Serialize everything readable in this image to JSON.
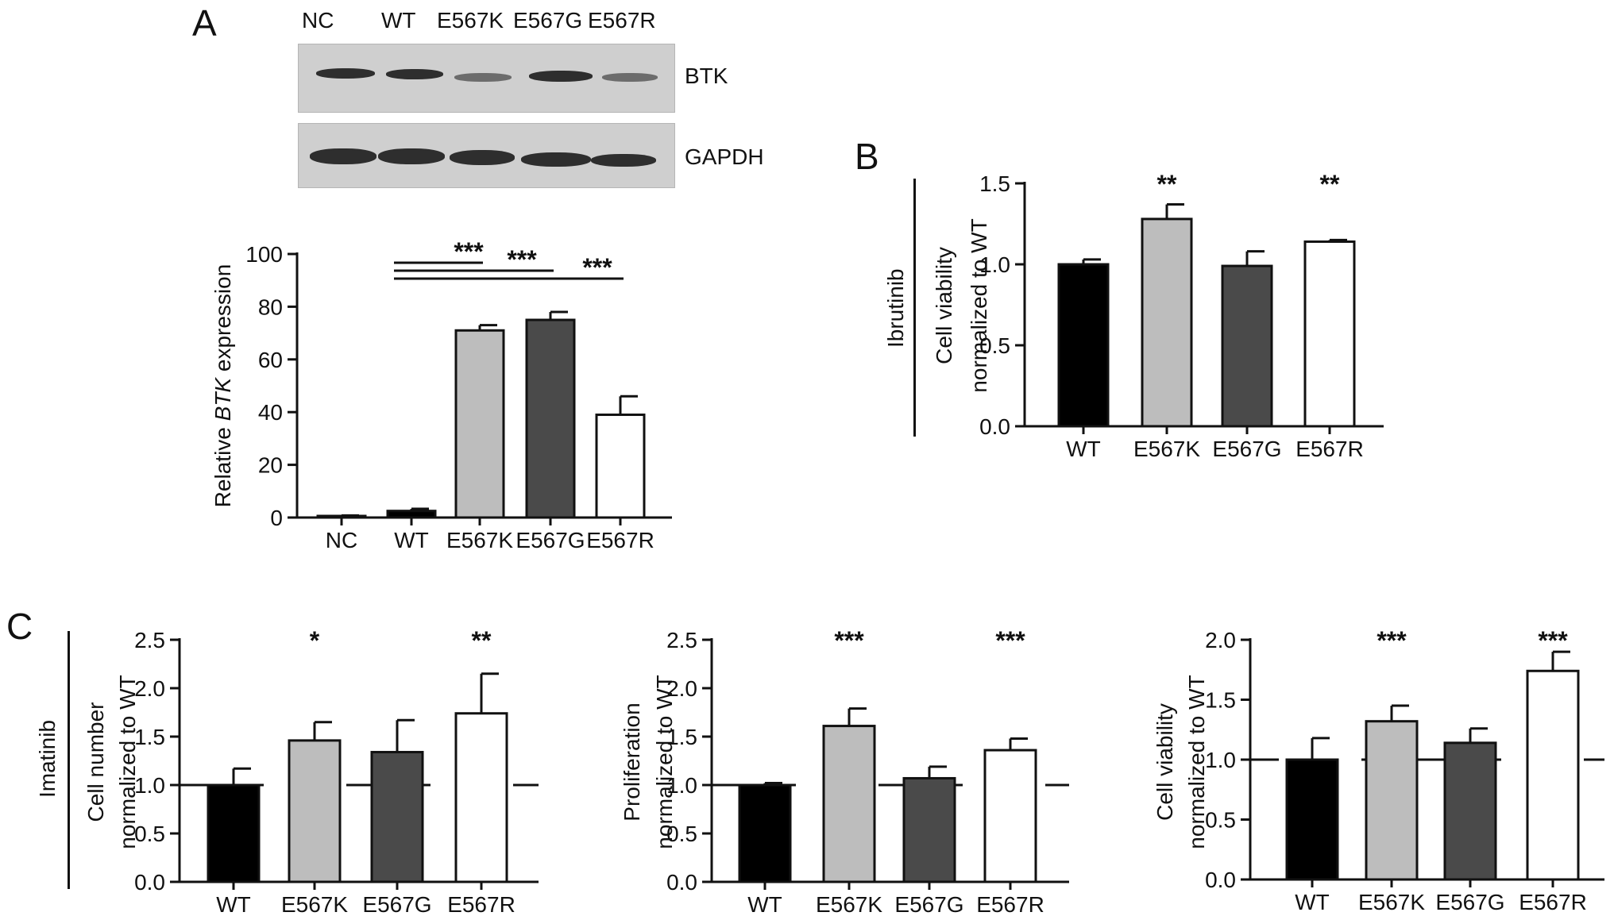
{
  "panels": {
    "A": "A",
    "B": "B",
    "C": "C"
  },
  "blot": {
    "lanes": [
      "NC",
      "WT",
      "E567K",
      "E567G",
      "E567R"
    ],
    "bands": [
      "BTK",
      "GAPDH"
    ]
  },
  "drugs": {
    "b": "Ibrutinib",
    "c": "Imatinib"
  },
  "chart_data": [
    {
      "id": "A",
      "type": "bar",
      "categories": [
        "NC",
        "WT",
        "E567K",
        "E567G",
        "E567R"
      ],
      "values": [
        0.5,
        2.5,
        71,
        75,
        39
      ],
      "errors": [
        0.3,
        0.8,
        2,
        3,
        7
      ],
      "colors": [
        "#000000",
        "#000000",
        "#bdbdbd",
        "#4a4a4a",
        "#ffffff"
      ],
      "ylabel": [
        "Relative ",
        "BTK",
        " expression"
      ],
      "ylim": [
        0,
        100
      ],
      "yticks": [
        "0",
        "20",
        "40",
        "60",
        "80",
        "100"
      ],
      "significance": [
        {
          "from": 1,
          "to": 2,
          "label": "***"
        },
        {
          "from": 1,
          "to": 3,
          "label": "***"
        },
        {
          "from": 1,
          "to": 4,
          "label": "***"
        }
      ]
    },
    {
      "id": "B",
      "type": "bar",
      "categories": [
        "WT",
        "E567K",
        "E567G",
        "E567R"
      ],
      "values": [
        1.0,
        1.28,
        0.99,
        1.14
      ],
      "errors": [
        0.03,
        0.09,
        0.09,
        0.01
      ],
      "colors": [
        "#000000",
        "#bdbdbd",
        "#4a4a4a",
        "#ffffff"
      ],
      "ylabel": [
        "Cell viability",
        "normalized to WT"
      ],
      "ylim": [
        0,
        1.5
      ],
      "yticks": [
        "0.0",
        "0.5",
        "1.0",
        "1.5"
      ],
      "stars": [
        "",
        "**",
        "",
        "**"
      ],
      "refline": null
    },
    {
      "id": "C1",
      "type": "bar",
      "categories": [
        "WT",
        "E567K",
        "E567G",
        "E567R"
      ],
      "values": [
        1.0,
        1.46,
        1.34,
        1.74
      ],
      "errors": [
        0.17,
        0.19,
        0.33,
        0.41
      ],
      "colors": [
        "#000000",
        "#bdbdbd",
        "#4a4a4a",
        "#ffffff"
      ],
      "ylabel": [
        "Cell number",
        "normalized to WT"
      ],
      "ylim": [
        0,
        2.5
      ],
      "yticks": [
        "0.0",
        "0.5",
        "1.0",
        "1.5",
        "2.0",
        "2.5"
      ],
      "stars": [
        "",
        "*",
        "",
        "**"
      ],
      "refline": 1.0
    },
    {
      "id": "C2",
      "type": "bar",
      "categories": [
        "WT",
        "E567K",
        "E567G",
        "E567R"
      ],
      "values": [
        1.0,
        1.61,
        1.07,
        1.36
      ],
      "errors": [
        0.02,
        0.18,
        0.12,
        0.12
      ],
      "colors": [
        "#000000",
        "#bdbdbd",
        "#4a4a4a",
        "#ffffff"
      ],
      "ylabel": [
        "Proliferation",
        "normalized to WT"
      ],
      "ylim": [
        0,
        2.5
      ],
      "yticks": [
        "0.0",
        "0.5",
        "1.0",
        "1.5",
        "2.0",
        "2.5"
      ],
      "stars": [
        "",
        "***",
        "",
        "***"
      ],
      "refline": 1.0
    },
    {
      "id": "C3",
      "type": "bar",
      "categories": [
        "WT",
        "E567K",
        "E567G",
        "E567R"
      ],
      "values": [
        1.0,
        1.32,
        1.14,
        1.74
      ],
      "errors": [
        0.18,
        0.13,
        0.12,
        0.16
      ],
      "colors": [
        "#000000",
        "#bdbdbd",
        "#4a4a4a",
        "#ffffff"
      ],
      "ylabel": [
        "Cell viability",
        "normalized to WT"
      ],
      "ylim": [
        0,
        2.0
      ],
      "yticks": [
        "0.0",
        "0.5",
        "1.0",
        "1.5",
        "2.0"
      ],
      "stars": [
        "",
        "***",
        "",
        "***"
      ],
      "refline": 1.0
    }
  ]
}
